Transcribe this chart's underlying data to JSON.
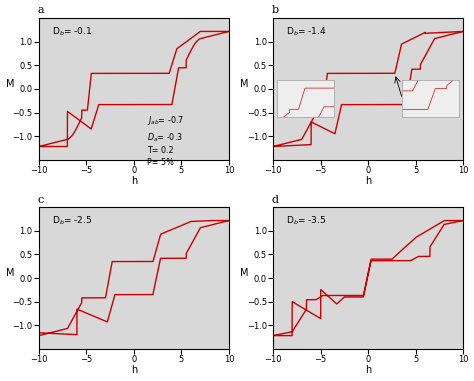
{
  "subplots": [
    {
      "label": "a",
      "db": -0.1
    },
    {
      "label": "b",
      "db": -1.4
    },
    {
      "label": "c",
      "db": -2.5
    },
    {
      "label": "d",
      "db": -3.5
    }
  ],
  "params_text": "$J_{ab}$= -0.7\n$D_a$= -0.3\nT= 0.2\nP= 5%",
  "xlim": [
    -10,
    10
  ],
  "ylim": [
    -1.5,
    1.5
  ],
  "xlabel": "h",
  "ylabel": "M",
  "line_color": "#cc0000",
  "bg_color": "#d8d8d8",
  "fig_bg": "#ffffff",
  "yticks": [
    -1.0,
    -0.5,
    0.0,
    0.5,
    1.0
  ],
  "xticks": [
    -10,
    -5,
    0,
    5,
    10
  ]
}
